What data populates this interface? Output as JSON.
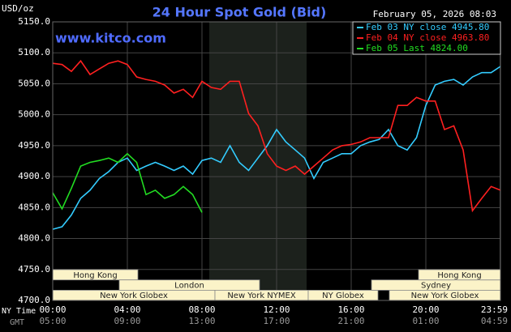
{
  "chart_data": {
    "type": "line",
    "title": "24 Hour Spot Gold (Bid)",
    "timestamp": "February 05, 2026 08:03",
    "unit_label": "USD/oz",
    "watermark": "www.kitco.com",
    "x_axis_label": "NY Time",
    "x2_axis_label": "GMT",
    "x": [
      0,
      0.5,
      1,
      1.5,
      2,
      2.5,
      3,
      3.5,
      4,
      4.5,
      5,
      5.5,
      6,
      6.5,
      7,
      7.5,
      8,
      8.5,
      9,
      9.5,
      10,
      10.5,
      11,
      11.5,
      12,
      12.5,
      13,
      13.5,
      14,
      14.5,
      15,
      15.5,
      16,
      16.5,
      17,
      17.5,
      18,
      18.5,
      19,
      19.5,
      20,
      20.5,
      21,
      21.5,
      22,
      22.5,
      23,
      23.5,
      24
    ],
    "series": [
      {
        "name": "Feb 03 NY close 4945.80",
        "color": "#33ccff",
        "values": [
          4815,
          4819,
          4838,
          4865,
          4878,
          4897,
          4908,
          4923,
          4930,
          4910,
          4917,
          4923,
          4917,
          4910,
          4917,
          4904,
          4926,
          4930,
          4923,
          4950,
          4923,
          4910,
          4930,
          4950,
          4976,
          4956,
          4943,
          4930,
          4897,
          4923,
          4930,
          4937,
          4937,
          4950,
          4956,
          4960,
          4976,
          4950,
          4943,
          4963,
          5015,
          5048,
          5054,
          5057,
          5048,
          5061,
          5068,
          5068,
          5078
        ]
      },
      {
        "name": "Feb 04 NY close 4963.80",
        "color": "#ff2020",
        "values": [
          5083,
          5081,
          5070,
          5087,
          5065,
          5074,
          5083,
          5087,
          5081,
          5061,
          5057,
          5054,
          5048,
          5035,
          5041,
          5028,
          5054,
          5044,
          5041,
          5054,
          5054,
          5002,
          4982,
          4937,
          4917,
          4910,
          4917,
          4904,
          4917,
          4930,
          4943,
          4950,
          4952,
          4956,
          4963,
          4963,
          4963,
          5015,
          5015,
          5028,
          5022,
          5022,
          4976,
          4982,
          4943,
          4845,
          4865,
          4884,
          4878
        ]
      },
      {
        "name": "Feb 05 Last 4824.00",
        "color": "#22dd22",
        "values": [
          4874,
          4848,
          4881,
          4917,
          4923,
          4926,
          4930,
          4923,
          4937,
          4923,
          4871,
          4878,
          4865,
          4871,
          4884,
          4871,
          4842,
          null,
          null,
          null,
          null,
          null,
          null,
          null,
          null,
          null,
          null,
          null,
          null,
          null,
          null,
          null,
          null,
          null,
          null,
          null,
          null,
          null,
          null,
          null,
          null,
          null,
          null,
          null,
          null,
          null,
          null,
          null,
          null
        ]
      }
    ],
    "xlim": [
      0,
      24
    ],
    "xticks": [
      {
        "value": 0,
        "label": "00:00"
      },
      {
        "value": 4,
        "label": "04:00"
      },
      {
        "value": 8,
        "label": "08:00"
      },
      {
        "value": 12,
        "label": "12:00"
      },
      {
        "value": 16,
        "label": "16:00"
      },
      {
        "value": 20,
        "label": "20:00"
      },
      {
        "value": 23.983,
        "label": "23:59"
      }
    ],
    "x2ticks": [
      "05:00",
      "09:00",
      "13:00",
      "17:00",
      "21:00",
      "01:00",
      "04:59"
    ],
    "ylim": [
      4700,
      5150
    ],
    "yticks": [
      {
        "value": 4700,
        "label": "4700.0"
      },
      {
        "value": 4750,
        "label": "4750.0"
      },
      {
        "value": 4800,
        "label": "4800.0"
      },
      {
        "value": 4850,
        "label": "4850.0"
      },
      {
        "value": 4900,
        "label": "4900.0"
      },
      {
        "value": 4950,
        "label": "4950.0"
      },
      {
        "value": 5000,
        "label": "5000.0"
      },
      {
        "value": 5050,
        "label": "5050.0"
      },
      {
        "value": 5100,
        "label": "5100.0"
      },
      {
        "value": 5150,
        "label": "5150.0"
      }
    ],
    "grid": true,
    "sessions": [
      "Hong Kong",
      "London",
      "New York Globex",
      "New York NYMEX",
      "NY Globex",
      "Sydney",
      "Hong Kong",
      "New York Globex"
    ]
  }
}
